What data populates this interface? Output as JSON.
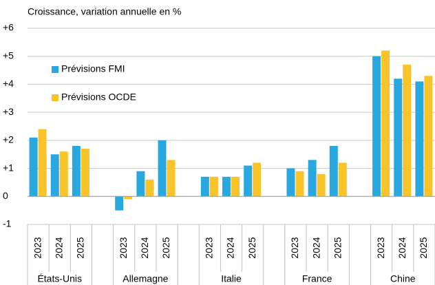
{
  "chart_data": {
    "type": "bar",
    "title": "Croissance, variation annuelle en %",
    "groups": [
      {
        "name": "États-Unis",
        "categories": [
          "2023",
          "2024",
          "2025"
        ]
      },
      {
        "name": "Allemagne",
        "categories": [
          "2023",
          "2024",
          "2025"
        ]
      },
      {
        "name": "Italie",
        "categories": [
          "2023",
          "2024",
          "2025"
        ]
      },
      {
        "name": "France",
        "categories": [
          "2023",
          "2024",
          "2025"
        ]
      },
      {
        "name": "Chine",
        "categories": [
          "2023",
          "2024",
          "2025"
        ]
      }
    ],
    "series": [
      {
        "name": "Prévisions FMI",
        "color": "#29a8e0",
        "values": [
          2.1,
          1.5,
          1.8,
          -0.5,
          0.9,
          2.0,
          0.7,
          0.7,
          1.1,
          1.0,
          1.3,
          1.8,
          5.0,
          4.2,
          4.1
        ]
      },
      {
        "name": "Prévisions OCDE",
        "color": "#f9c32a",
        "values": [
          2.4,
          1.6,
          1.7,
          -0.1,
          0.6,
          1.3,
          0.7,
          0.7,
          1.2,
          0.9,
          0.8,
          1.2,
          5.2,
          4.7,
          4.3
        ]
      }
    ],
    "ylim": [
      -1,
      6
    ],
    "yticks": [
      -1,
      0,
      {
        "value": 1,
        "label": "+1"
      },
      {
        "value": 2,
        "label": "+2"
      },
      {
        "value": 3,
        "label": "+3"
      },
      {
        "value": 4,
        "label": "+4"
      },
      {
        "value": 5,
        "label": "+5"
      },
      {
        "value": 6,
        "label": "+6"
      }
    ],
    "grid": true,
    "legend": "upper left"
  }
}
